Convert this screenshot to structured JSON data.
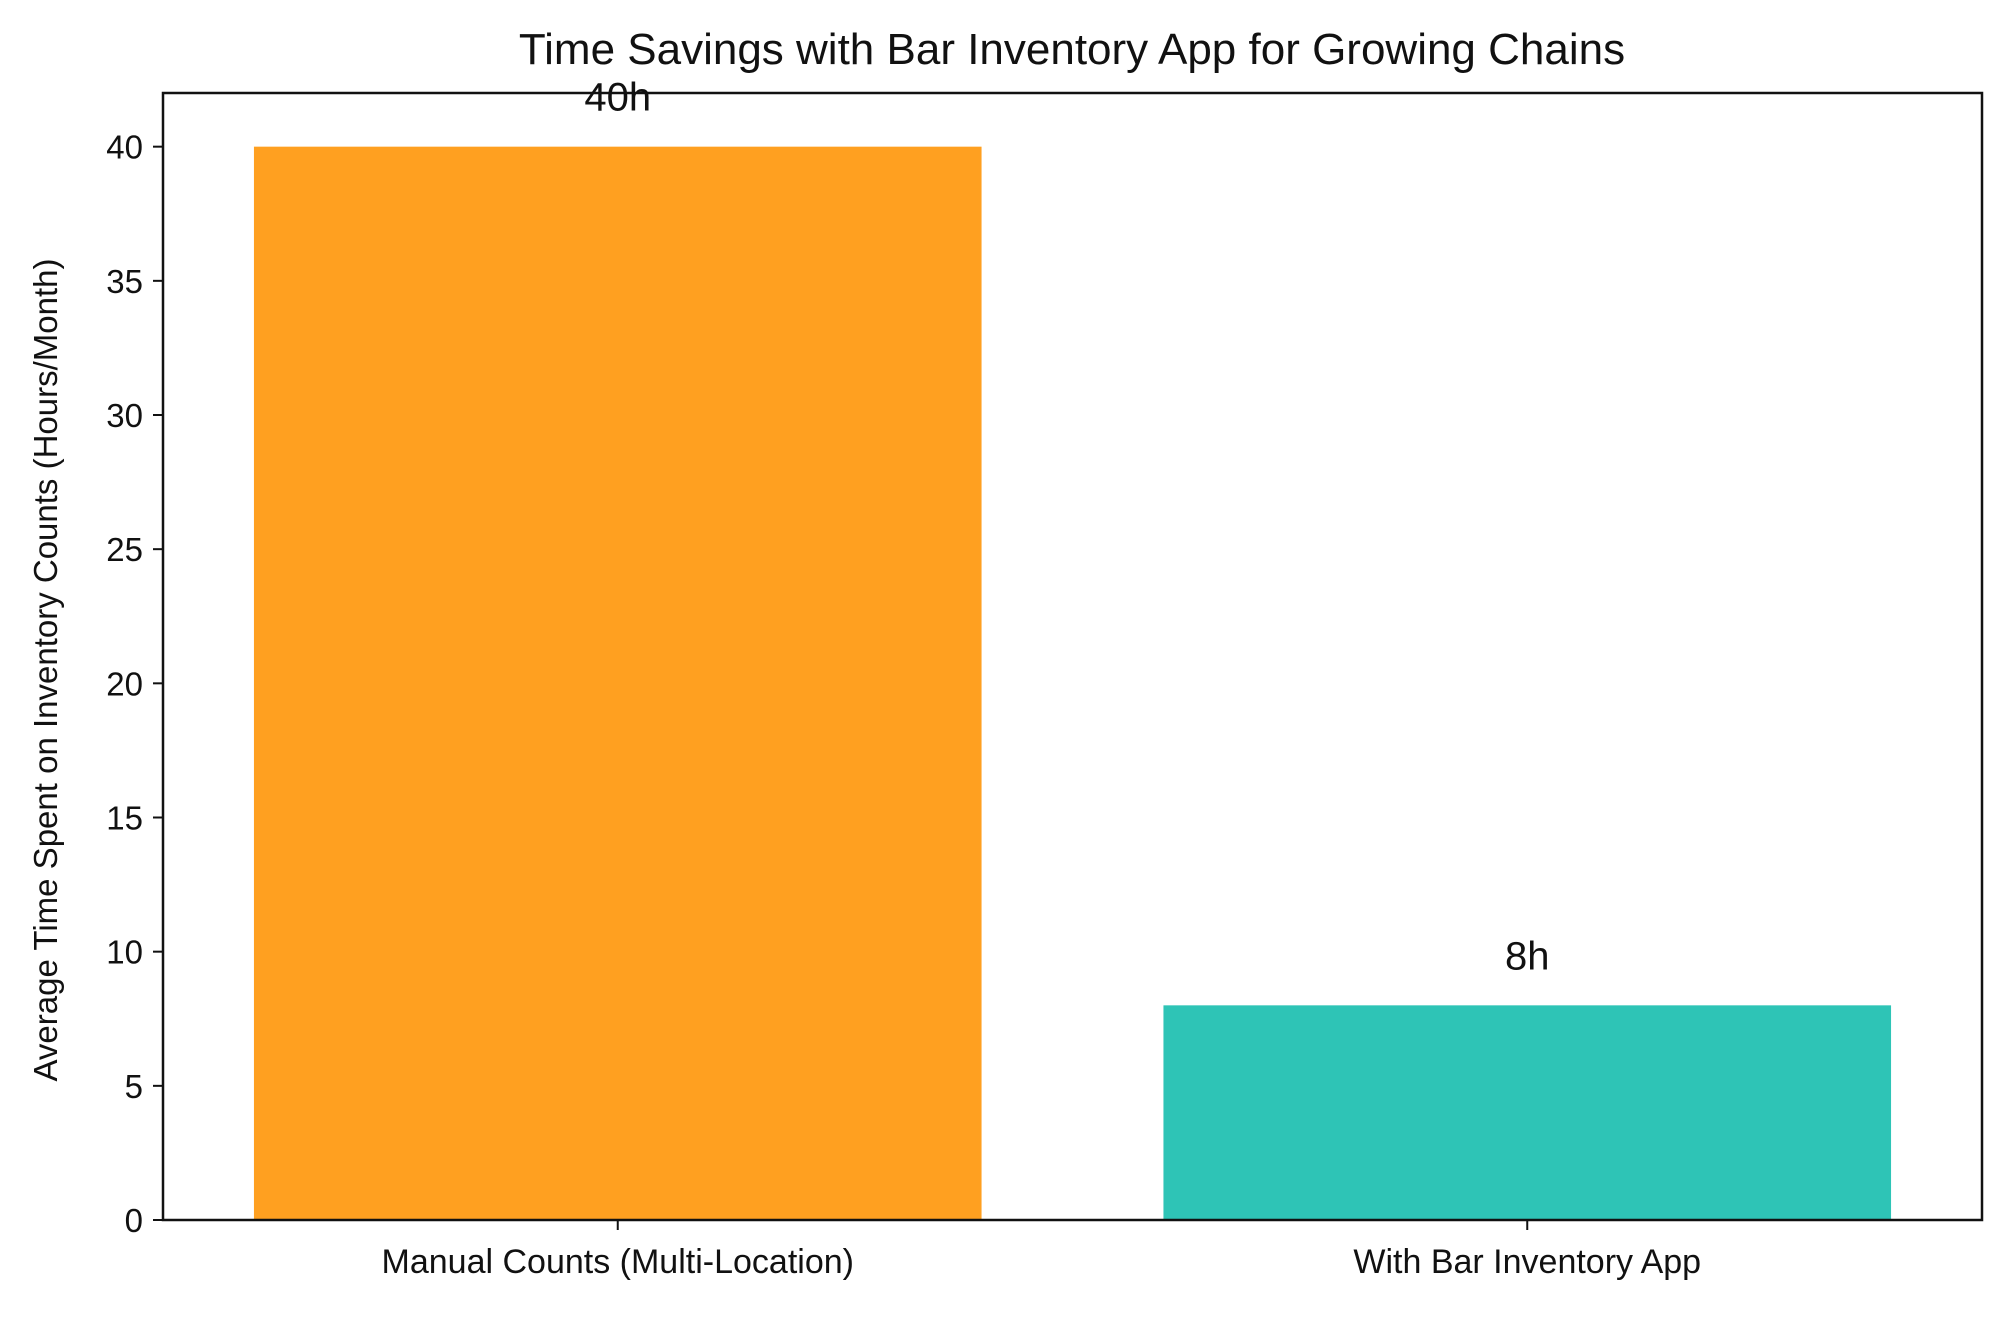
{
  "chart_data": {
    "type": "bar",
    "title": "Time Savings with Bar Inventory App for Growing Chains",
    "xlabel": "",
    "ylabel": "Average Time Spent on Inventory Counts (Hours/Month)",
    "categories": [
      "Manual Counts (Multi-Location)",
      "With Bar Inventory App"
    ],
    "values": [
      40,
      8
    ],
    "value_labels": [
      "40h",
      "8h"
    ],
    "colors": [
      "#FFA020",
      "#2EC4B6"
    ],
    "ylim": [
      0,
      42
    ],
    "yticks": [
      0,
      5,
      10,
      15,
      20,
      25,
      30,
      35,
      40
    ],
    "grid": false,
    "legend": "none"
  }
}
